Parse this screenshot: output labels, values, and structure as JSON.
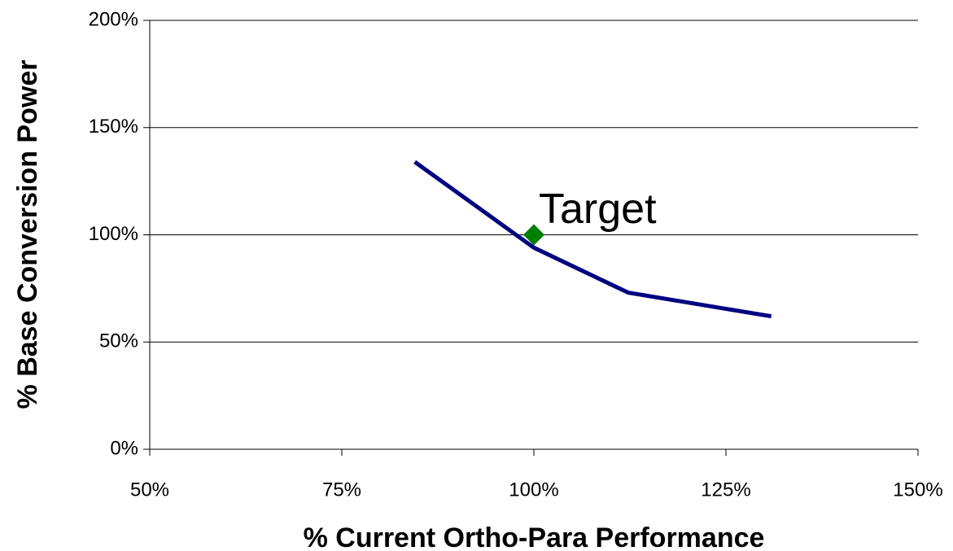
{
  "chart_data": {
    "type": "line",
    "x_label": "% Current Ortho-Para Performance",
    "y_label": "% Base Conversion Power",
    "xlim": [
      50,
      150
    ],
    "ylim": [
      0,
      200
    ],
    "xticks": [
      {
        "value": 50,
        "label": "50%"
      },
      {
        "value": 75,
        "label": "75%"
      },
      {
        "value": 100,
        "label": "100%"
      },
      {
        "value": 125,
        "label": "125%"
      },
      {
        "value": 150,
        "label": "150%"
      }
    ],
    "yticks": [
      {
        "value": 0,
        "label": "0%"
      },
      {
        "value": 50,
        "label": "50%"
      },
      {
        "value": 100,
        "label": "100%"
      },
      {
        "value": 150,
        "label": "150%"
      },
      {
        "value": 200,
        "label": "200%"
      }
    ],
    "grid": true,
    "series": [
      {
        "color": "#000080",
        "x": [
          84.5,
          100,
          112.3,
          130.9
        ],
        "values": [
          134,
          94,
          73,
          62
        ]
      }
    ],
    "annotations": [
      {
        "text": "Target",
        "x": 100,
        "y": 100,
        "color": "#008000"
      }
    ]
  }
}
